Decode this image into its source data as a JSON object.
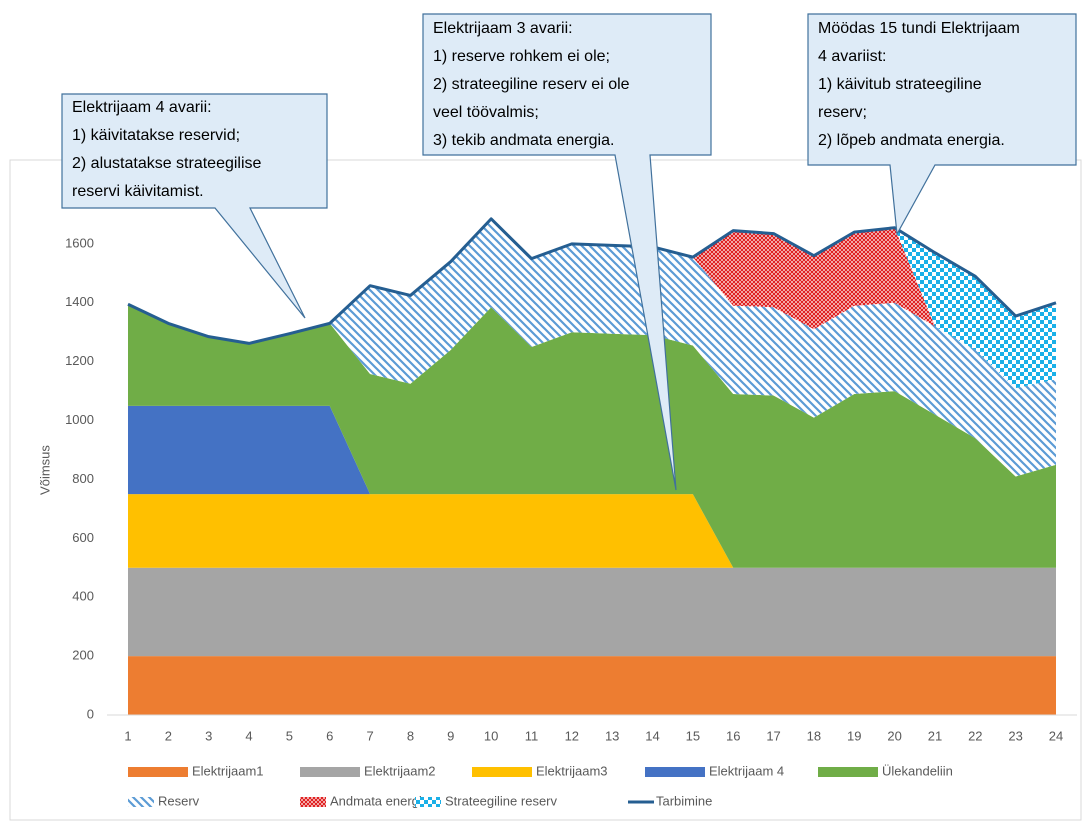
{
  "chart_data": {
    "type": "stacked_area",
    "y_axis_label": "Võimsus",
    "categories": [
      "1",
      "2",
      "3",
      "4",
      "5",
      "6",
      "7",
      "8",
      "9",
      "10",
      "11",
      "12",
      "13",
      "14",
      "15",
      "16",
      "17",
      "18",
      "19",
      "20",
      "21",
      "22",
      "23",
      "24"
    ],
    "ylim": [
      0,
      1800
    ],
    "yticks": [
      0,
      200,
      400,
      600,
      800,
      1000,
      1200,
      1400,
      1600
    ],
    "grid": false,
    "series": [
      {
        "name": "Elektrijaam1",
        "color": "#ed7d31",
        "values": [
          200,
          200,
          200,
          200,
          200,
          200,
          200,
          200,
          200,
          200,
          200,
          200,
          200,
          200,
          200,
          200,
          200,
          200,
          200,
          200,
          200,
          200,
          200,
          200
        ]
      },
      {
        "name": "Elektrijaam2",
        "color": "#a5a5a5",
        "values": [
          300,
          300,
          300,
          300,
          300,
          300,
          300,
          300,
          300,
          300,
          300,
          300,
          300,
          300,
          300,
          300,
          300,
          300,
          300,
          300,
          300,
          300,
          300,
          300
        ]
      },
      {
        "name": "Elektrijaam3",
        "color": "#ffc000",
        "values": [
          250,
          250,
          250,
          250,
          250,
          250,
          250,
          250,
          250,
          250,
          250,
          250,
          250,
          250,
          250,
          0,
          0,
          0,
          0,
          0,
          0,
          0,
          0,
          0
        ]
      },
      {
        "name": "Elektrijaam 4",
        "color": "#4472c4",
        "values": [
          300,
          300,
          300,
          300,
          300,
          300,
          0,
          0,
          0,
          0,
          0,
          0,
          0,
          0,
          0,
          0,
          0,
          0,
          0,
          0,
          0,
          0,
          0,
          0
        ]
      },
      {
        "name": "Ülekandeliin",
        "color": "#70ad47",
        "values": [
          345,
          280,
          235,
          212,
          245,
          280,
          408,
          375,
          490,
          635,
          500,
          550,
          545,
          540,
          505,
          590,
          585,
          510,
          590,
          600,
          520,
          440,
          310,
          350
        ]
      },
      {
        "name": "Reserv",
        "color": "#5b9bd5",
        "pattern": "diagonal",
        "values": [
          0,
          0,
          0,
          0,
          0,
          0,
          300,
          300,
          300,
          300,
          300,
          300,
          300,
          300,
          300,
          300,
          300,
          300,
          300,
          300,
          300,
          300,
          300,
          290
        ]
      },
      {
        "name": "Andmata energia",
        "color": "#e02020",
        "pattern": "crosshatch",
        "values": [
          0,
          0,
          0,
          0,
          0,
          0,
          0,
          0,
          0,
          0,
          0,
          0,
          0,
          0,
          0,
          255,
          250,
          250,
          250,
          255,
          0,
          0,
          0,
          0
        ]
      },
      {
        "name": "Strateegiline reserv",
        "color": "#1ab0e8",
        "pattern": "checker",
        "values": [
          0,
          0,
          0,
          0,
          0,
          0,
          0,
          0,
          0,
          0,
          0,
          0,
          0,
          0,
          0,
          0,
          0,
          0,
          0,
          0,
          250,
          250,
          245,
          260
        ]
      },
      {
        "name": "Tarbimine",
        "color": "#255e91",
        "kind": "line",
        "values": [
          1395,
          1330,
          1285,
          1262,
          1295,
          1330,
          1458,
          1425,
          1540,
          1685,
          1550,
          1600,
          1595,
          1590,
          1555,
          1645,
          1635,
          1560,
          1640,
          1655,
          1570,
          1490,
          1355,
          1400
        ]
      }
    ],
    "annotations": [
      [
        "Elektrijaam 4 avarii:",
        "1) käivitatakse reservid;",
        "2) alustatakse strateegilise",
        "reservi käivitamist."
      ],
      [
        "Elektrijaam 3 avarii:",
        "1) reserve rohkem ei ole;",
        "2) strateegiline reserv ei ole",
        "veel töövalmis;",
        "3) tekib andmata energia."
      ],
      [
        "Möödas 15 tundi Elektrijaam",
        "4 avariist:",
        "1) käivitub strateegiline",
        "reserv;",
        "2) lõpeb andmata energia."
      ]
    ]
  }
}
